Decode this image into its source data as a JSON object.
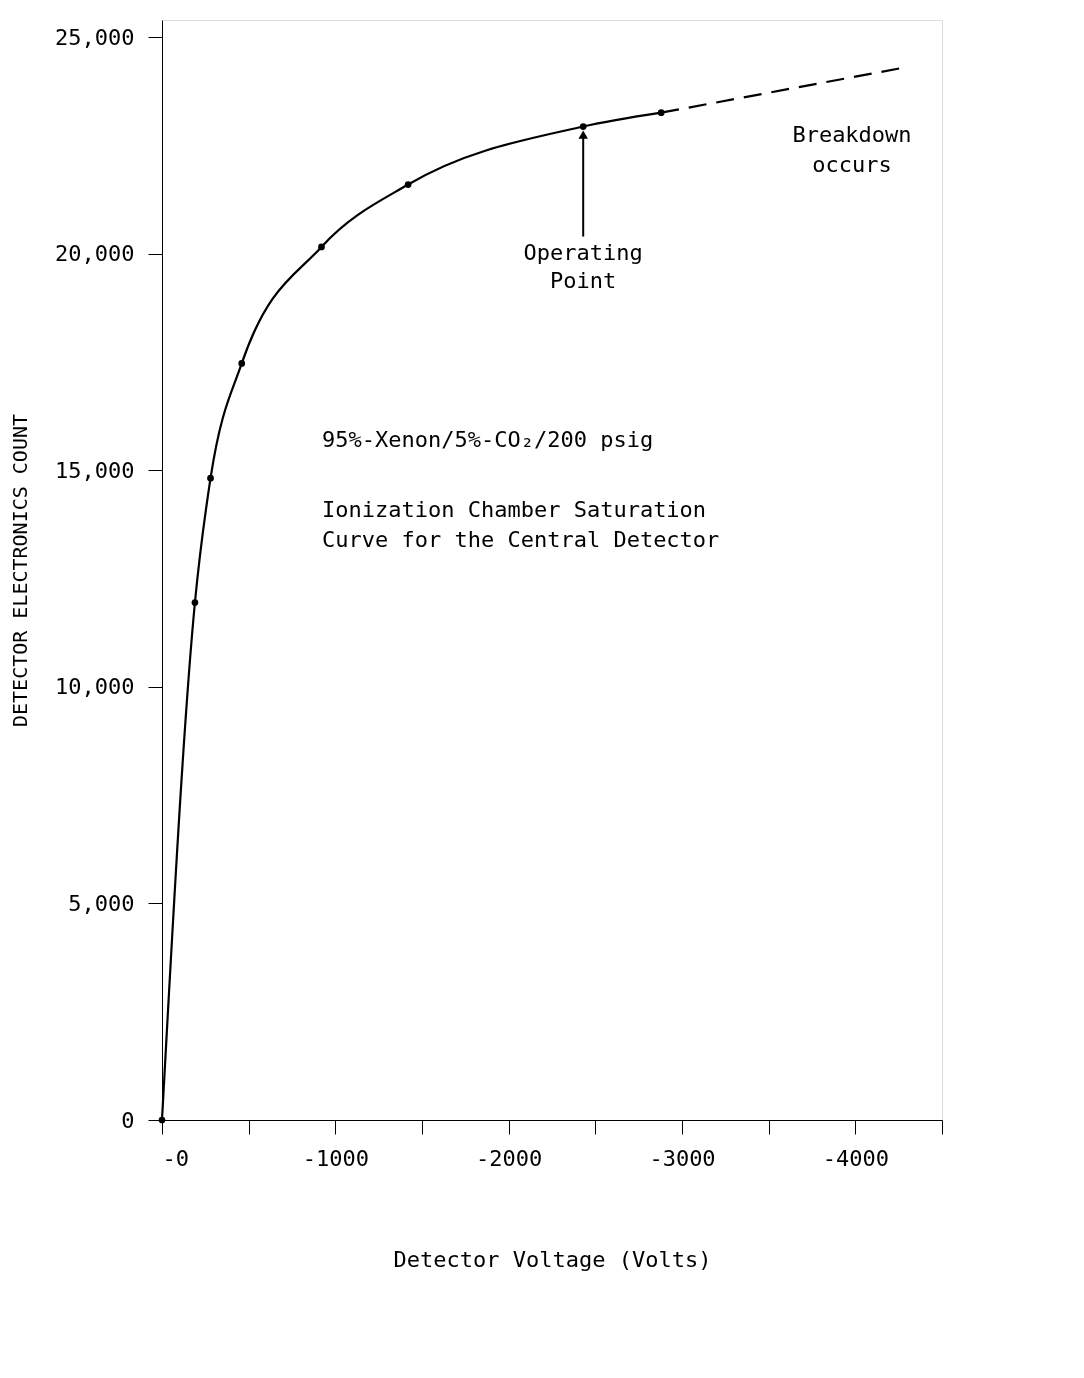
{
  "chart_data": {
    "type": "line",
    "xlabel": "Detector Voltage (Volts)",
    "ylabel": "DETECTOR ELECTRONICS COUNT",
    "xlim": [
      0,
      -4500
    ],
    "ylim": [
      0,
      25400
    ],
    "xticks": [
      {
        "value": 0,
        "label": "-0"
      },
      {
        "value": -500,
        "label": null
      },
      {
        "value": -1000,
        "label": "-1000"
      },
      {
        "value": -1500,
        "label": null
      },
      {
        "value": -2000,
        "label": "-2000"
      },
      {
        "value": -2500,
        "label": null
      },
      {
        "value": -3000,
        "label": "-3000"
      },
      {
        "value": -3500,
        "label": null
      },
      {
        "value": -4000,
        "label": "-4000"
      },
      {
        "value": -4500,
        "label": null
      }
    ],
    "yticks": [
      0,
      {
        "value": 5000,
        "label": "5,000"
      },
      {
        "value": 10000,
        "label": "10,000"
      },
      {
        "value": 15000,
        "label": "15,000"
      },
      {
        "value": 20000,
        "label": "20,000"
      },
      {
        "value": 25000,
        "label": "25,000"
      }
    ],
    "grid": false,
    "series": [
      {
        "color": "#000000",
        "marker": "circle",
        "line_style": "solid",
        "x": [
          0,
          -190,
          -280,
          -460,
          -920,
          -1420,
          -2430,
          -2880
        ],
        "values": [
          0,
          11950,
          14820,
          17470,
          20160,
          21600,
          22940,
          23260
        ]
      },
      {
        "color": "#000000",
        "marker": "none",
        "line_style": "dashed",
        "x": [
          -2880,
          -4280
        ],
        "values": [
          23260,
          24300
        ]
      }
    ],
    "annotations": [
      {
        "text": "Operating\nPoint",
        "x": -2430,
        "y": 22940
      },
      "Breakdown\noccurs",
      "95%-Xenon/5%-CO₂/200 psig",
      "Ionization Chamber Saturation\nCurve for the Central Detector"
    ]
  }
}
